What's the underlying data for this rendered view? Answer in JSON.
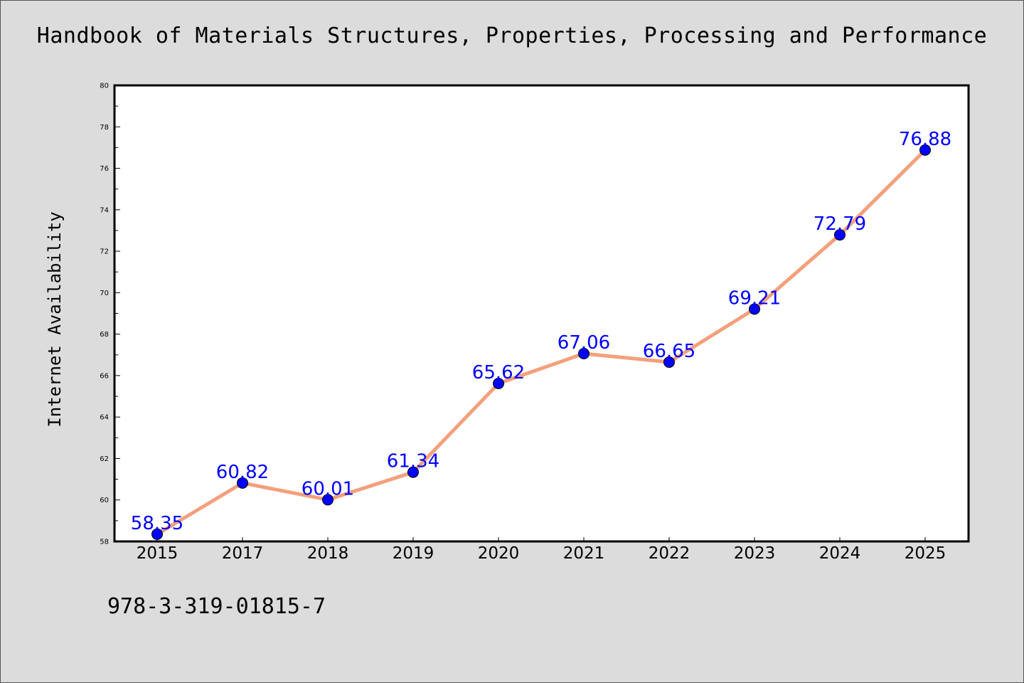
{
  "chart_data": {
    "type": "line",
    "title": "Handbook of Materials Structures, Properties, Processing and Performance",
    "ylabel": "Internet Availability",
    "xlabel": "",
    "categories": [
      "2015",
      "2017",
      "2018",
      "2019",
      "2020",
      "2021",
      "2022",
      "2023",
      "2024",
      "2025"
    ],
    "values": [
      58.35,
      60.82,
      60.01,
      61.34,
      65.62,
      67.06,
      66.65,
      69.21,
      72.79,
      76.88
    ],
    "data_labels": [
      "58.35",
      "60.82",
      "60.01",
      "61.34",
      "65.62",
      "67.06",
      "66.65",
      "69.21",
      "72.79",
      "76.88"
    ],
    "ylim": [
      58,
      80
    ],
    "yticks": [
      "58",
      "60",
      "62",
      "64",
      "66",
      "68",
      "70",
      "72",
      "74",
      "76",
      "78",
      "80"
    ],
    "grid": false,
    "line_color": "#f4a07c",
    "marker_color": "#0000ff",
    "label_color": "#0000ff"
  },
  "footer": {
    "isbn": "978-3-319-01815-7"
  }
}
